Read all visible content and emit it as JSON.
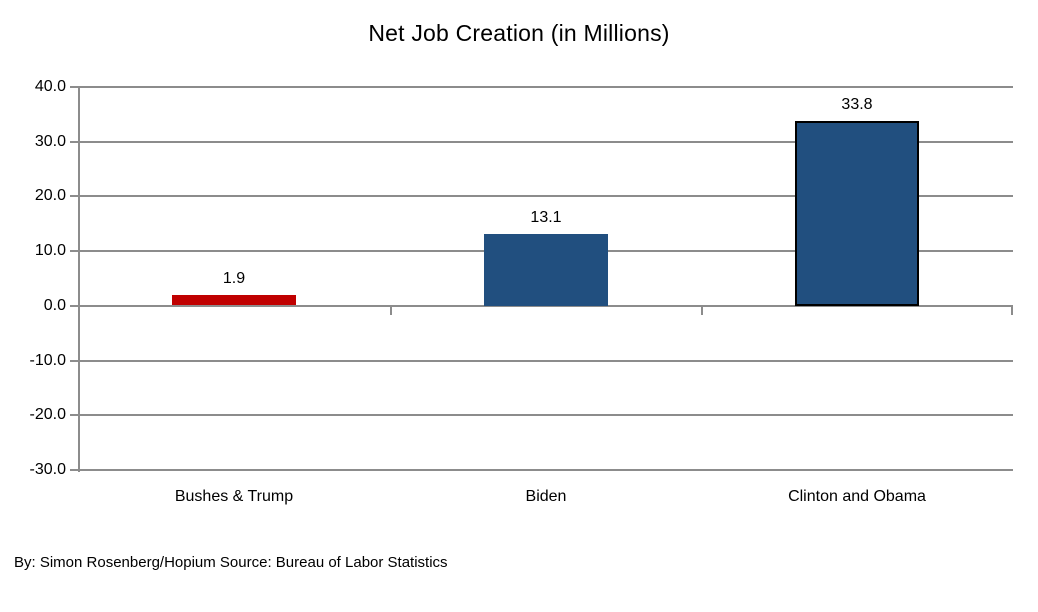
{
  "chart_data": {
    "type": "bar",
    "title": "Net Job Creation (in Millions)",
    "categories": [
      "Bushes & Trump",
      "Biden",
      "Clinton and Obama"
    ],
    "values": [
      1.9,
      13.1,
      33.8
    ],
    "value_labels": [
      "1.9",
      "13.1",
      "33.8"
    ],
    "bar_colors": [
      "#c00000",
      "#214f7f",
      "#214f7f"
    ],
    "bar_border_colors": [
      null,
      null,
      "#000000"
    ],
    "xlabel": "",
    "ylabel": "",
    "ylim": [
      -30,
      40
    ],
    "ytick_step": 10,
    "ytick_labels": [
      "40.0",
      "30.0",
      "20.0",
      "10.0",
      "0.0",
      "-10.0",
      "-20.0",
      "-30.0"
    ],
    "grid": true,
    "legend": "none",
    "axis_color": "#8c8c8c",
    "source_note": "By: Simon Rosenberg/Hopium Source: Bureau of Labor Statistics"
  }
}
